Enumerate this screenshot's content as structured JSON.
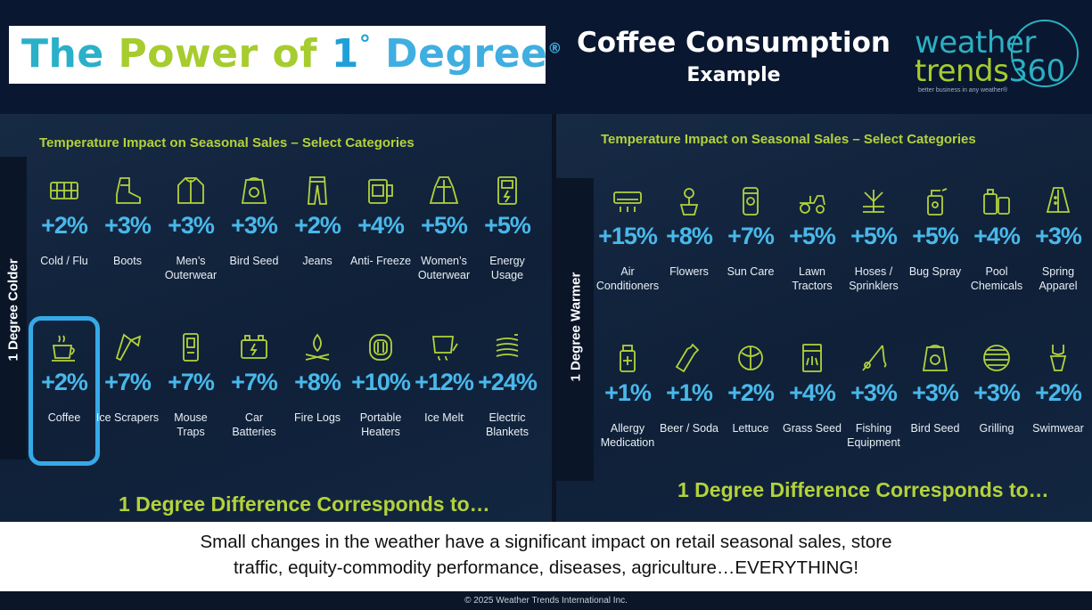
{
  "header": {
    "title_the": "The ",
    "title_power": "Power ",
    "title_of": "of ",
    "title_one": "1",
    "title_degree_symbol": "°",
    "title_degree": "Degree",
    "title_reg": "®",
    "coffee_title": "Coffee Consumption",
    "example_title": "Example"
  },
  "logo": {
    "line1": "weather",
    "line2a": "trends",
    "line2b": "360",
    "tagline": "better business in any weather®"
  },
  "left_panel": {
    "side_label": "1 Degree Colder",
    "heading": "Temperature Impact on Seasonal Sales – Select Categories",
    "footer": "1 Degree Difference Corresponds to…",
    "items": [
      {
        "icon": "thermometer-grid-icon",
        "pct": "+2%",
        "label": "Cold / Flu"
      },
      {
        "icon": "boot-icon",
        "pct": "+3%",
        "label": "Boots"
      },
      {
        "icon": "jacket-icon",
        "pct": "+3%",
        "label": "Men’s Outerwear"
      },
      {
        "icon": "seed-bag-icon",
        "pct": "+3%",
        "label": "Bird Seed"
      },
      {
        "icon": "jeans-icon",
        "pct": "+2%",
        "label": "Jeans"
      },
      {
        "icon": "antifreeze-icon",
        "pct": "+4%",
        "label": "Anti- Freeze"
      },
      {
        "icon": "coat-icon",
        "pct": "+5%",
        "label": "Women’s Outerwear"
      },
      {
        "icon": "energy-meter-icon",
        "pct": "+5%",
        "label": "Energy Usage"
      },
      {
        "icon": "coffee-cup-icon",
        "pct": "+2%",
        "label": "Coffee"
      },
      {
        "icon": "ice-scraper-icon",
        "pct": "+7%",
        "label": "Ice Scrapers"
      },
      {
        "icon": "mouse-trap-icon",
        "pct": "+7%",
        "label": "Mouse Traps"
      },
      {
        "icon": "car-battery-icon",
        "pct": "+7%",
        "label": "Car Batteries"
      },
      {
        "icon": "fire-log-icon",
        "pct": "+8%",
        "label": "Fire Logs"
      },
      {
        "icon": "heater-icon",
        "pct": "+10%",
        "label": "Portable Heaters"
      },
      {
        "icon": "ice-melt-icon",
        "pct": "+12%",
        "label": "Ice Melt"
      },
      {
        "icon": "electric-blanket-icon",
        "pct": "+24%",
        "label": "Electric Blankets"
      }
    ]
  },
  "right_panel": {
    "side_label": "1 Degree Warmer",
    "heading": "Temperature Impact on Seasonal Sales – Select Categories",
    "footer": "1 Degree Difference Corresponds to…",
    "items": [
      {
        "icon": "air-conditioner-icon",
        "pct": "+15%",
        "label": "Air Conditioners"
      },
      {
        "icon": "flower-pot-icon",
        "pct": "+8%",
        "label": "Flowers"
      },
      {
        "icon": "sunscreen-icon",
        "pct": "+7%",
        "label": "Sun Care"
      },
      {
        "icon": "lawn-tractor-icon",
        "pct": "+5%",
        "label": "Lawn Tractors"
      },
      {
        "icon": "sprinkler-icon",
        "pct": "+5%",
        "label": "Hoses / Sprinklers"
      },
      {
        "icon": "bug-spray-icon",
        "pct": "+5%",
        "label": "Bug Spray"
      },
      {
        "icon": "pool-chemicals-icon",
        "pct": "+4%",
        "label": "Pool Chemicals"
      },
      {
        "icon": "raincoat-icon",
        "pct": "+3%",
        "label": "Spring Apparel"
      },
      {
        "icon": "medicine-bottle-icon",
        "pct": "+1%",
        "label": "Allergy Medication"
      },
      {
        "icon": "bottle-icon",
        "pct": "+1%",
        "label": "Beer / Soda"
      },
      {
        "icon": "lettuce-icon",
        "pct": "+2%",
        "label": "Lettuce"
      },
      {
        "icon": "grass-seed-icon",
        "pct": "+4%",
        "label": "Grass Seed"
      },
      {
        "icon": "fishing-rod-icon",
        "pct": "+3%",
        "label": "Fishing Equipment"
      },
      {
        "icon": "seed-bag-icon",
        "pct": "+3%",
        "label": "Bird Seed"
      },
      {
        "icon": "grill-icon",
        "pct": "+3%",
        "label": "Grilling"
      },
      {
        "icon": "swimsuit-icon",
        "pct": "+2%",
        "label": "Swimwear"
      }
    ]
  },
  "footer": {
    "line1": "Small changes in the weather have a significant impact on retail seasonal sales, store",
    "line2": "traffic, equity-commodity performance, diseases, agriculture…EVERYTHING!",
    "copyright": "© 2025 Weather Trends International Inc."
  },
  "colors": {
    "accent_green": "#b3d23a",
    "accent_blue": "#49b8ea",
    "highlight": "#36a9e8"
  }
}
